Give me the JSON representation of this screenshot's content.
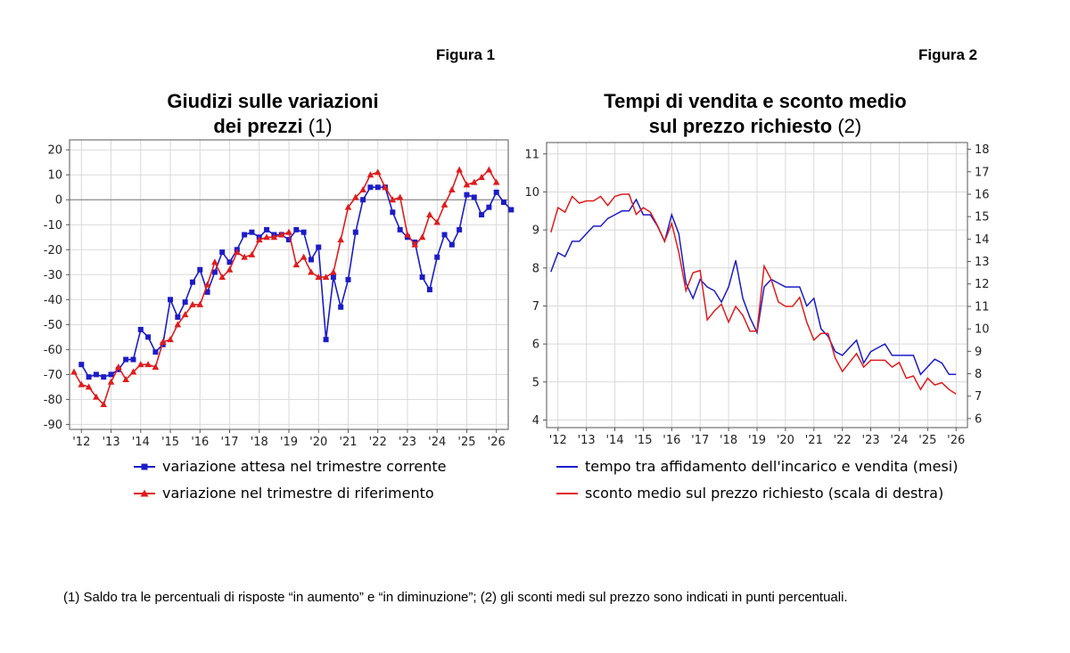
{
  "figures": [
    {
      "label": "Figura 1",
      "title_line1": "Giudizi sulle variazioni",
      "title_line2_bold": "dei prezzi",
      "title_line2_note": "(1)"
    },
    {
      "label": "Figura 2",
      "title_line1": "Tempi di vendita e sconto medio",
      "title_line2_bold": "sul prezzo richiesto",
      "title_line2_note": "(2)"
    }
  ],
  "footnote": "(1) Saldo tra le percentuali di risposte “in aumento” e “in diminuzione”; (2) gli sconti medi sul prezzo sono indicati in punti percentuali.",
  "colors": {
    "blue": "#1c1cc8",
    "red": "#e01c1c",
    "grid": "#d9d9d9",
    "axis": "#555555",
    "zero": "#8c8c8c"
  },
  "chart_data": [
    {
      "type": "line",
      "xlim": [
        2011.6,
        2026.4
      ],
      "x_ticks": [
        2012,
        2013,
        2014,
        2015,
        2016,
        2017,
        2018,
        2019,
        2020,
        2021,
        2022,
        2023,
        2024,
        2025,
        2026
      ],
      "x_tick_labels": [
        "'12",
        "'13",
        "'14",
        "'15",
        "'16",
        "'17",
        "'18",
        "'19",
        "'20",
        "'21",
        "'22",
        "'23",
        "'24",
        "'25",
        "'26"
      ],
      "ylim": [
        -92,
        24
      ],
      "y_ticks": [
        -90,
        -80,
        -70,
        -60,
        -50,
        -40,
        -30,
        -20,
        -10,
        0,
        10,
        20
      ],
      "grid": true,
      "reference_line": 0,
      "x_start": 2011.75,
      "x_step": 0.25,
      "series": [
        {
          "name": "variazione attesa nel trimestre corrente",
          "color": "#1c1cc8",
          "marker": "square",
          "x_start": 2012.0,
          "values": [
            -66,
            -71,
            -70,
            -71,
            -70,
            -68,
            -64,
            -64,
            -52,
            -55,
            -61,
            -58,
            -40,
            -47,
            -41,
            -33,
            -28,
            -37,
            -29,
            -21,
            -25,
            -20,
            -14,
            -13,
            -15,
            -12,
            -14,
            -14,
            -16,
            -12,
            -13,
            -24,
            -19,
            -56,
            -31,
            -43,
            -32,
            -13,
            0,
            5,
            5,
            5,
            -5,
            -12,
            -15,
            -17,
            -31,
            -36,
            -23,
            -14,
            -18,
            -12,
            2,
            1,
            -6,
            -3,
            3,
            -1,
            -4
          ]
        },
        {
          "name": "variazione nel trimestre di riferimento",
          "color": "#e01c1c",
          "marker": "triangle",
          "x_start": 2011.75,
          "values": [
            -69,
            -74,
            -75,
            -79,
            -82,
            -73,
            -67,
            -72,
            -69,
            -66,
            -66,
            -67,
            -57,
            -56,
            -50,
            -46,
            -42,
            -42,
            -34,
            -25,
            -31,
            -28,
            -21,
            -23,
            -22,
            -16,
            -15,
            -15,
            -14,
            -13,
            -26,
            -23,
            -29,
            -31,
            -31,
            -29,
            -16,
            -3,
            1,
            4,
            10,
            11,
            5,
            0,
            1,
            -14,
            -18,
            -15,
            -6,
            -9,
            -2,
            4,
            12,
            6,
            7,
            9,
            12,
            7
          ]
        }
      ]
    },
    {
      "type": "line",
      "xlim": [
        2011.6,
        2026.4
      ],
      "x_ticks": [
        2012,
        2013,
        2014,
        2015,
        2016,
        2017,
        2018,
        2019,
        2020,
        2021,
        2022,
        2023,
        2024,
        2025,
        2026
      ],
      "x_tick_labels": [
        "'12",
        "'13",
        "'14",
        "'15",
        "'16",
        "'17",
        "'18",
        "'19",
        "'20",
        "'21",
        "'22",
        "'23",
        "'24",
        "'25",
        "'26"
      ],
      "ylim_left": [
        3.8,
        11.3
      ],
      "ylim_right": [
        5.6,
        18.3
      ],
      "y_ticks_left": [
        4,
        5,
        6,
        7,
        8,
        9,
        10,
        11
      ],
      "y_ticks_right": [
        6,
        7,
        8,
        9,
        10,
        11,
        12,
        13,
        14,
        15,
        16,
        17,
        18
      ],
      "grid": true,
      "series": [
        {
          "name": "tempo tra affidamento dell'incarico e vendita (mesi)",
          "color": "#1c1cc8",
          "axis": "left",
          "x_start": 2011.75,
          "x_step": 0.25,
          "values": [
            7.9,
            8.4,
            8.3,
            8.7,
            8.7,
            8.9,
            9.1,
            9.1,
            9.3,
            9.4,
            9.5,
            9.5,
            9.8,
            9.4,
            9.4,
            9.1,
            8.7,
            9.4,
            8.9,
            7.6,
            7.2,
            7.7,
            7.5,
            7.4,
            7.1,
            7.5,
            8.2,
            7.2,
            6.7,
            6.3,
            7.5,
            7.7,
            7.6,
            7.5,
            7.5,
            7.5,
            7.0,
            7.2,
            6.4,
            6.2,
            5.8,
            5.7,
            5.9,
            6.1,
            5.5,
            5.8,
            5.9,
            6.0,
            5.7,
            5.7,
            5.7,
            5.7,
            5.2,
            5.4,
            5.6,
            5.5,
            5.2,
            5.2
          ]
        },
        {
          "name": "sconto medio sul prezzo richiesto (scala di destra)",
          "color": "#e01c1c",
          "axis": "right",
          "x_start": 2011.75,
          "x_step": 0.25,
          "values": [
            14.3,
            15.4,
            15.2,
            15.9,
            15.6,
            15.7,
            15.7,
            15.9,
            15.5,
            15.9,
            16.0,
            16.0,
            15.1,
            15.4,
            15.2,
            14.6,
            13.9,
            14.7,
            13.4,
            11.7,
            12.5,
            12.6,
            10.4,
            10.8,
            11.1,
            10.3,
            11.0,
            10.6,
            9.9,
            9.9,
            12.8,
            12.2,
            11.2,
            11.0,
            11.0,
            11.4,
            10.3,
            9.5,
            9.8,
            9.8,
            8.7,
            8.1,
            8.5,
            8.9,
            8.3,
            8.6,
            8.6,
            8.6,
            8.3,
            8.5,
            7.8,
            7.9,
            7.3,
            7.8,
            7.5,
            7.6,
            7.3,
            7.1
          ]
        }
      ]
    }
  ]
}
